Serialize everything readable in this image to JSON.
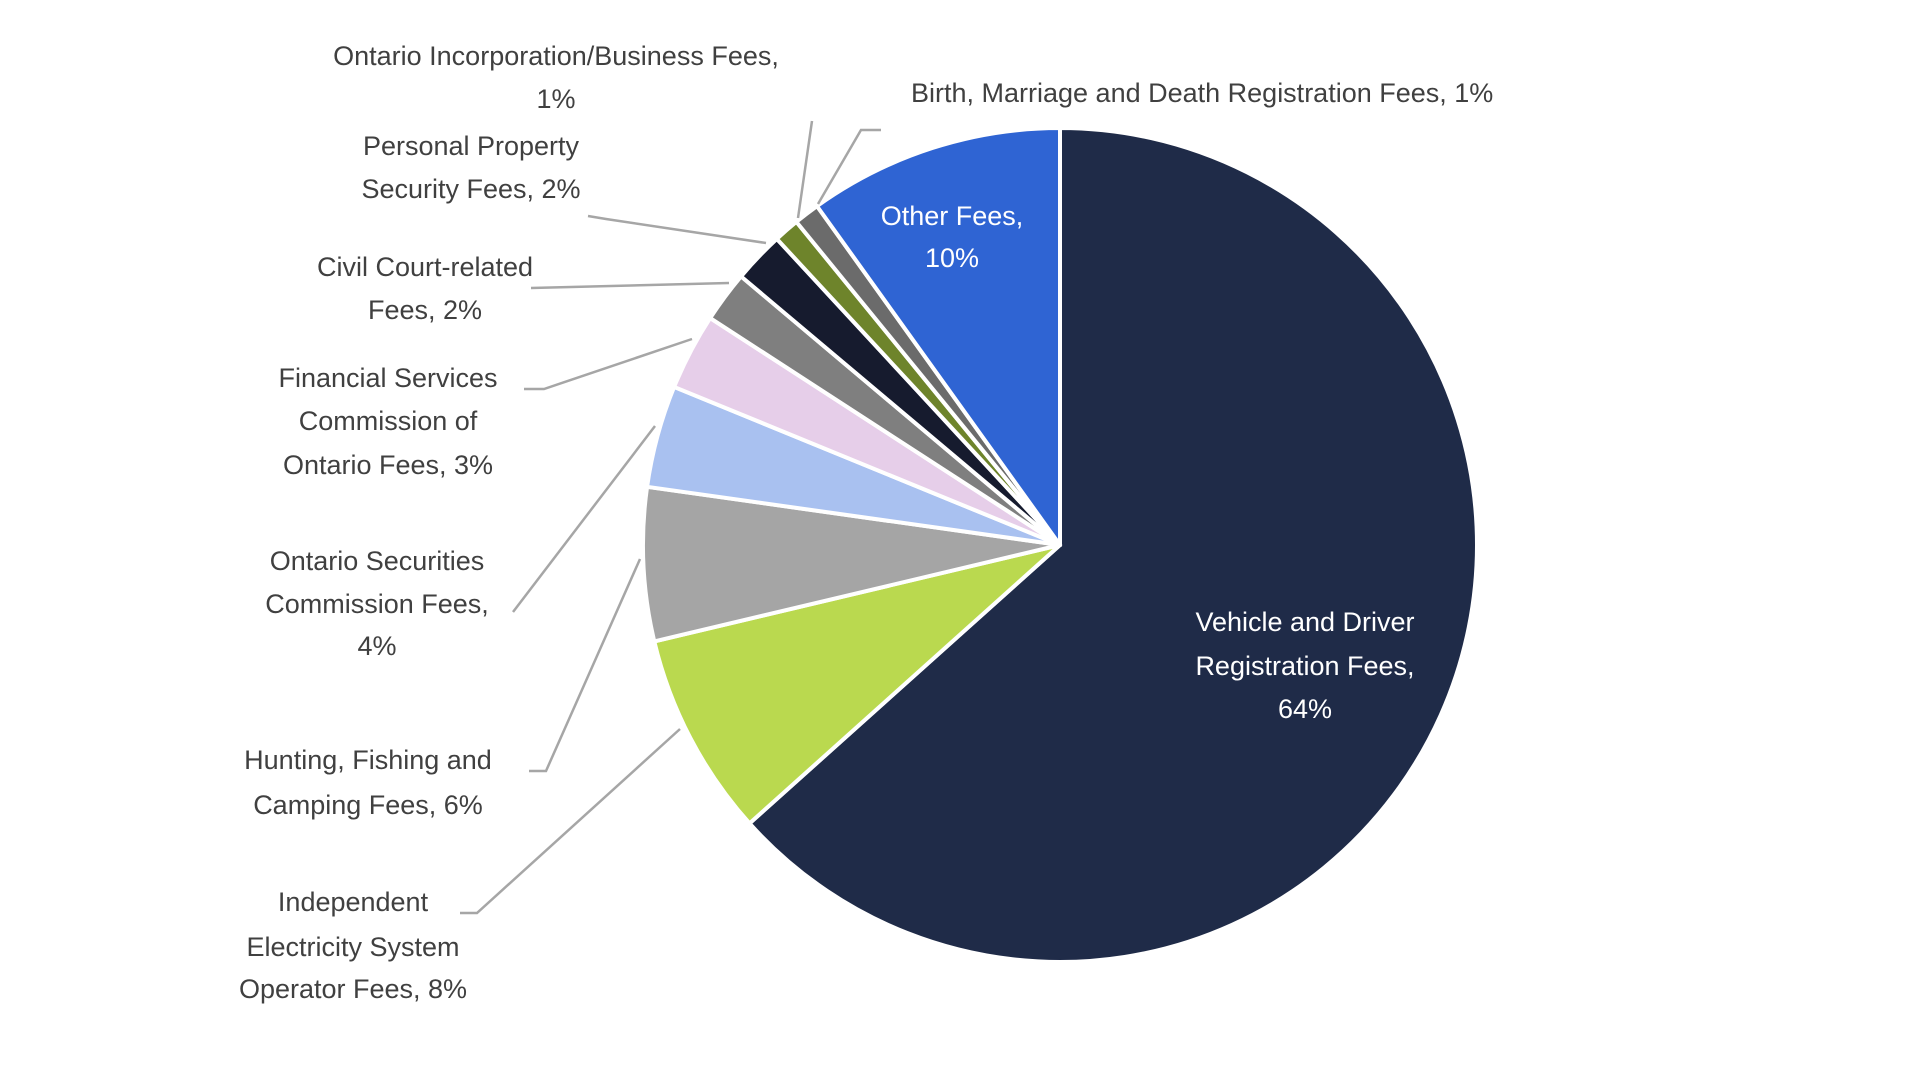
{
  "chart_data": {
    "type": "pie",
    "start": "12 o'clock, clockwise",
    "slices": [
      {
        "label": [
          "Vehicle and Driver",
          "Registration Fees,",
          "64%"
        ],
        "name": "Vehicle and Driver Registration Fees",
        "value": 64,
        "color": "#1F2B48",
        "label_color": "#FFFFFF"
      },
      {
        "label": [
          "Independent",
          "Electricity System",
          "Operator Fees, 8%"
        ],
        "name": "Independent Electricity System Operator Fees",
        "value": 8,
        "color": "#BAD94F",
        "label_color": "#404040"
      },
      {
        "label": [
          "Hunting, Fishing and",
          "Camping Fees, 6%"
        ],
        "name": "Hunting, Fishing and Camping Fees",
        "value": 6,
        "color": "#A5A5A5",
        "label_color": "#404040"
      },
      {
        "label": [
          "Ontario Securities",
          "Commission Fees,",
          "4%"
        ],
        "name": "Ontario Securities Commission Fees",
        "value": 4,
        "color": "#A9C1F0",
        "label_color": "#404040"
      },
      {
        "label": [
          "Financial Services",
          "Commission of",
          "Ontario Fees, 3%"
        ],
        "name": "Financial Services Commission of Ontario Fees",
        "value": 3,
        "color": "#E6CEE9",
        "label_color": "#404040"
      },
      {
        "label": [
          "Civil Court-related",
          "Fees, 2%"
        ],
        "name": "Civil Court-related Fees",
        "value": 2,
        "color": "#7F7F7F",
        "label_color": "#404040"
      },
      {
        "label": [
          "Personal Property",
          "Security Fees, 2%"
        ],
        "name": "Personal Property Security Fees",
        "value": 2,
        "color": "#161B2E",
        "label_color": "#404040"
      },
      {
        "label": [
          "Ontario Incorporation/Business Fees,",
          "1%"
        ],
        "name": "Ontario Incorporation/Business Fees",
        "value": 1,
        "color": "#6E842B",
        "label_color": "#404040"
      },
      {
        "label": [
          "Birth, Marriage and Death Registration Fees, 1%"
        ],
        "name": "Birth, Marriage and Death Registration Fees",
        "value": 1,
        "color": "#6B6B6B",
        "label_color": "#404040"
      },
      {
        "label": [
          "Other Fees,",
          "10%"
        ],
        "name": "Other Fees",
        "value": 10,
        "color": "#2F64D3",
        "label_color": "#FFFFFF"
      }
    ],
    "leader_line_color": "#A6A6A6"
  }
}
